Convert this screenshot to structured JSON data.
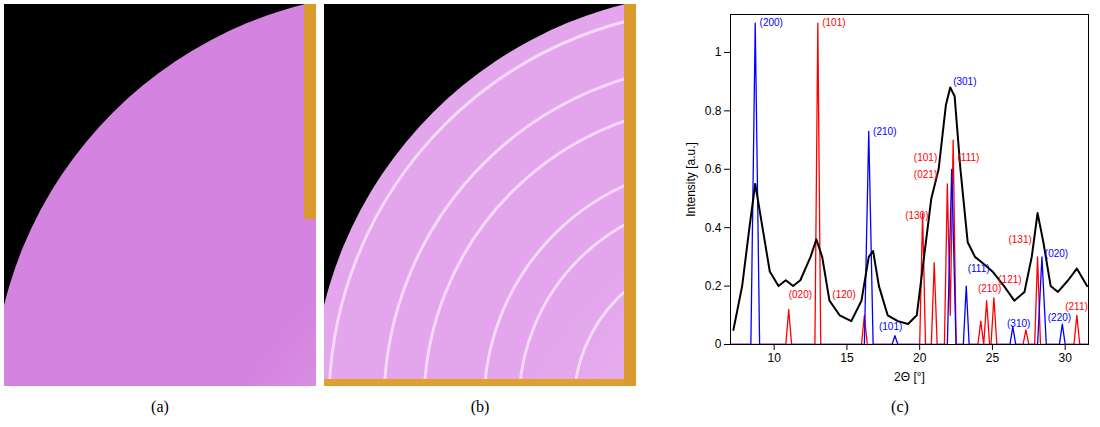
{
  "panel_labels": [
    "(a)",
    "(b)",
    "(c)"
  ],
  "chart_data": {
    "type": "line",
    "xlabel": "2Θ [°]",
    "ylabel": "Intensity [a.u.]",
    "xlim": [
      7.0,
      31.6
    ],
    "ylim": [
      0,
      1.13
    ],
    "xticks": [
      10,
      15,
      20,
      25,
      30
    ],
    "yticks": [
      0,
      0.2,
      0.4,
      0.6,
      0.8,
      1
    ],
    "grid": false,
    "series": [
      {
        "color": "#000000",
        "x": [
          7.2,
          7.8,
          8.3,
          8.7,
          9.2,
          9.7,
          10.3,
          10.8,
          11.3,
          11.8,
          12.5,
          12.9,
          13.3,
          13.8,
          14.5,
          15.3,
          16.0,
          16.5,
          16.8,
          17.2,
          17.8,
          18.5,
          19.2,
          19.8,
          20.3,
          20.8,
          21.3,
          21.8,
          22.1,
          22.4,
          22.8,
          23.3,
          23.8,
          24.3,
          25.0,
          25.8,
          26.5,
          27.2,
          27.7,
          28.1,
          28.5,
          29.0,
          29.5,
          30.2,
          30.8,
          31.5
        ],
        "values": [
          0.05,
          0.2,
          0.4,
          0.55,
          0.4,
          0.25,
          0.2,
          0.22,
          0.2,
          0.22,
          0.3,
          0.36,
          0.3,
          0.15,
          0.1,
          0.08,
          0.15,
          0.3,
          0.32,
          0.2,
          0.1,
          0.08,
          0.07,
          0.1,
          0.3,
          0.5,
          0.6,
          0.82,
          0.88,
          0.85,
          0.6,
          0.35,
          0.3,
          0.28,
          0.25,
          0.2,
          0.15,
          0.18,
          0.3,
          0.45,
          0.35,
          0.2,
          0.18,
          0.22,
          0.26,
          0.2
        ]
      },
      {
        "color": "#0000ff",
        "x": [
          7.0,
          8.4,
          8.7,
          9.0,
          16.2,
          16.5,
          16.8,
          18.1,
          18.3,
          18.5,
          21.9,
          22.2,
          22.5,
          23.0,
          23.2,
          23.4,
          26.2,
          26.4,
          26.6,
          28.1,
          28.4,
          28.7,
          29.6,
          29.8,
          30.0,
          31.6
        ],
        "values": [
          0,
          0,
          1.1,
          0,
          0,
          0.73,
          0,
          0,
          0.03,
          0,
          0,
          0.6,
          0,
          0,
          0.2,
          0,
          0,
          0.06,
          0,
          0,
          0.3,
          0,
          0,
          0.07,
          0,
          0
        ]
      },
      {
        "color": "#ff0000",
        "x": [
          7.0,
          10.8,
          11.0,
          11.2,
          12.8,
          13.0,
          13.2,
          16.0,
          16.2,
          16.4,
          20.0,
          20.2,
          20.4,
          20.8,
          21.0,
          21.2,
          21.7,
          21.9,
          22.1,
          22.3,
          22.5,
          24.0,
          24.2,
          24.4,
          24.6,
          24.8,
          24.9,
          25.1,
          25.3,
          27.1,
          27.3,
          27.5,
          27.9,
          28.1,
          28.3,
          30.6,
          30.8,
          31.0,
          31.6
        ],
        "values": [
          0,
          0,
          0.12,
          0,
          0,
          1.1,
          0,
          0,
          0.1,
          0,
          0,
          0.45,
          0,
          0,
          0.28,
          0,
          0,
          0.55,
          0.1,
          0.7,
          0,
          0,
          0.08,
          0,
          0.15,
          0,
          0,
          0.16,
          0,
          0,
          0.05,
          0,
          0,
          0.3,
          0,
          0,
          0.1,
          0,
          0
        ]
      }
    ],
    "annotations": [
      {
        "text": "(200)",
        "x": 9.0,
        "y": 1.1,
        "color": "#0000ff"
      },
      {
        "text": "(101)",
        "x": 13.3,
        "y": 1.1,
        "color": "#ff0000"
      },
      {
        "text": "(210)",
        "x": 16.8,
        "y": 0.73,
        "color": "#0000ff"
      },
      {
        "text": "(301)",
        "x": 22.3,
        "y": 0.9,
        "color": "#0000ff"
      },
      {
        "text": "(101)",
        "x": 19.6,
        "y": 0.64,
        "color": "#ff0000"
      },
      {
        "text": "(021)",
        "x": 19.6,
        "y": 0.58,
        "color": "#ff0000"
      },
      {
        "text": "(111)",
        "x": 22.6,
        "y": 0.64,
        "color": "#ff0000"
      },
      {
        "text": "(130)",
        "x": 19.0,
        "y": 0.44,
        "color": "#ff0000"
      },
      {
        "text": "(020)",
        "x": 11.0,
        "y": 0.17,
        "color": "#ff0000"
      },
      {
        "text": "(120)",
        "x": 14.0,
        "y": 0.17,
        "color": "#ff0000"
      },
      {
        "text": "(101)",
        "x": 17.2,
        "y": 0.06,
        "color": "#0000ff"
      },
      {
        "text": "(111)",
        "x": 23.3,
        "y": 0.26,
        "color": "#0000ff"
      },
      {
        "text": "(210)",
        "x": 24.0,
        "y": 0.19,
        "color": "#ff0000"
      },
      {
        "text": "(121)",
        "x": 25.4,
        "y": 0.22,
        "color": "#ff0000"
      },
      {
        "text": "(310)",
        "x": 26.0,
        "y": 0.07,
        "color": "#0000ff"
      },
      {
        "text": "(131)",
        "x": 26.1,
        "y": 0.36,
        "color": "#ff0000"
      },
      {
        "text": "(020)",
        "x": 28.6,
        "y": 0.31,
        "color": "#0000ff"
      },
      {
        "text": "(220)",
        "x": 28.8,
        "y": 0.09,
        "color": "#0000ff"
      },
      {
        "text": "(211)",
        "x": 30.0,
        "y": 0.13,
        "color": "#ff0000"
      }
    ]
  }
}
